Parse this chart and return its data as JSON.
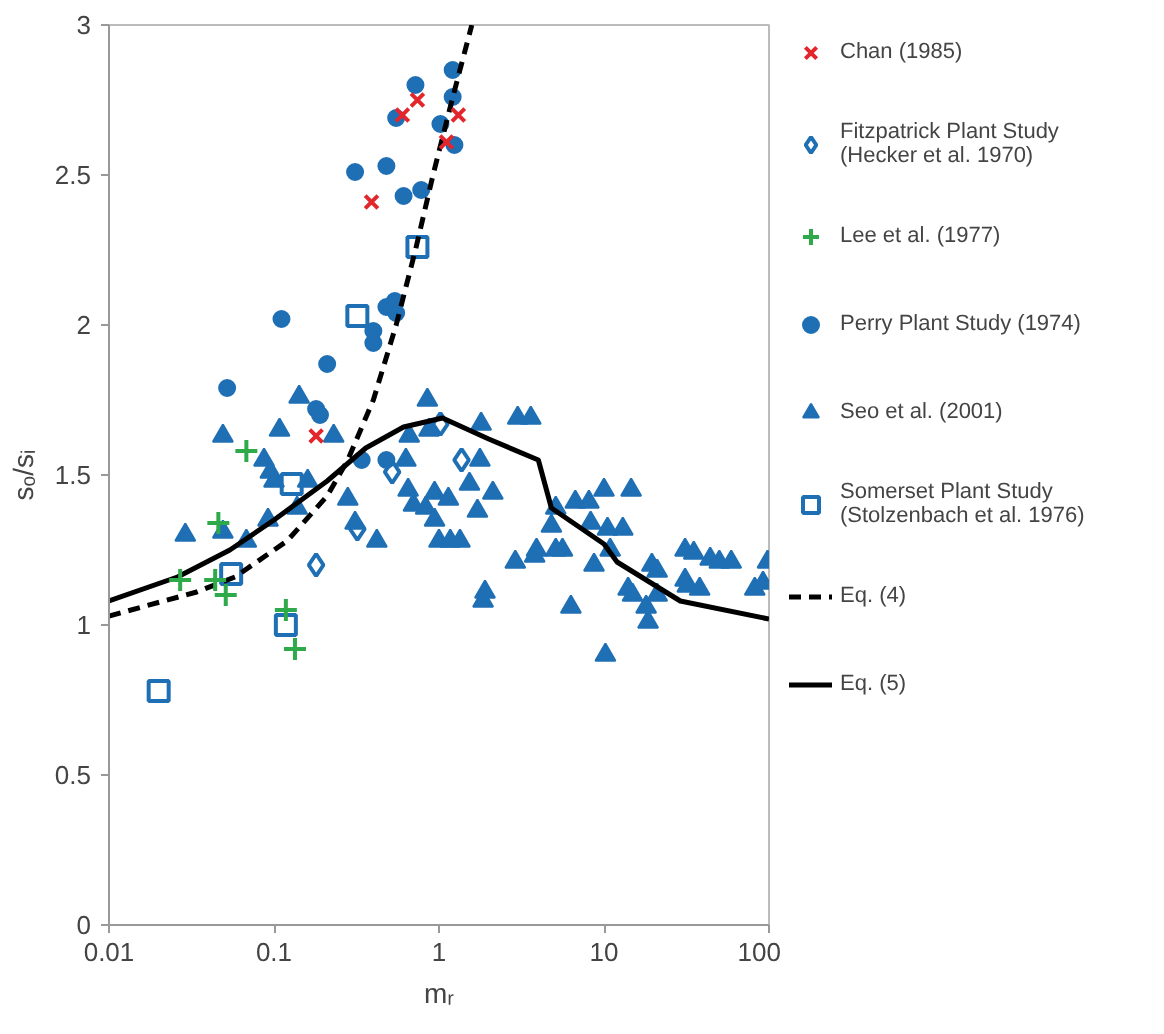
{
  "chart_data": {
    "type": "scatter",
    "xlabel": "mᵣ",
    "ylabel": "sₒ/sᵢ",
    "log": "x",
    "grid": false,
    "legend": "right",
    "xlim": [
      0.01,
      100
    ],
    "xticks": [
      0.01,
      0.1,
      1,
      10,
      100
    ],
    "ylim": [
      0,
      3
    ],
    "yticks": [
      0,
      0.5,
      1,
      1.5,
      2,
      2.5,
      3
    ],
    "series": [
      {
        "name": "Chan (1985)",
        "color": "#e3262c",
        "marker": "x",
        "x": [
          0.39,
          0.74,
          0.6,
          1.31,
          1.11,
          0.18
        ],
        "values": [
          2.41,
          2.75,
          2.7,
          2.7,
          2.61,
          1.63
        ]
      },
      {
        "name": "Fitzpatrick Plant Study (Hecker et al. 1970)",
        "color": "#1f6fb5",
        "marker": "diamond",
        "x": [
          1.02,
          0.52,
          1.37,
          0.32,
          0.18
        ],
        "values": [
          1.67,
          1.51,
          1.55,
          1.32,
          1.2
        ]
      },
      {
        "name": "Lee et al. (1977)",
        "color": "#2eaa4a",
        "marker": "cross",
        "x": [
          0.027,
          0.046,
          0.044,
          0.051,
          0.118,
          0.134,
          0.068
        ],
        "values": [
          1.15,
          1.34,
          1.15,
          1.1,
          1.05,
          0.92,
          1.58
        ]
      },
      {
        "name": "Perry Plant Study (1974)",
        "color": "#1f6fb5",
        "marker": "circle",
        "x": [
          0.052,
          0.111,
          0.21,
          0.31,
          0.48,
          0.61,
          0.78,
          0.55,
          0.72,
          1.02,
          1.21,
          1.21,
          1.24,
          0.4,
          0.4,
          0.48,
          0.54,
          0.55,
          0.18,
          0.19,
          0.34,
          0.48
        ],
        "values": [
          1.79,
          2.02,
          1.87,
          2.51,
          2.53,
          2.43,
          2.45,
          2.69,
          2.8,
          2.67,
          2.85,
          2.76,
          2.6,
          1.98,
          1.94,
          2.06,
          2.08,
          2.04,
          1.72,
          1.7,
          1.55,
          1.55
        ]
      },
      {
        "name": "Seo et al. (2001)",
        "color": "#1f6fb5",
        "marker": "triangle",
        "x": [
          0.029,
          0.049,
          0.108,
          0.142,
          0.23,
          0.087,
          0.095,
          0.1,
          0.092,
          0.068,
          0.049,
          0.138,
          0.16,
          0.28,
          0.42,
          0.31,
          0.63,
          0.65,
          0.7,
          0.83,
          0.94,
          1.14,
          0.94,
          1.0,
          1.17,
          1.34,
          1.53,
          1.71,
          2.12,
          1.85,
          1.9,
          0.85,
          0.66,
          0.87,
          1.8,
          3.0,
          3.6,
          1.77,
          2.9,
          3.9,
          3.8,
          5.1,
          6.3,
          5.1,
          6.7,
          4.8,
          5.6,
          8.1,
          8.3,
          8.7,
          10,
          10.5,
          10.2,
          10.9,
          13,
          14.6,
          14,
          14.9,
          18,
          18.5,
          19.5,
          21,
          21,
          31,
          35,
          31,
          32,
          38,
          44,
          50,
          59,
          82,
          92,
          98
        ],
        "values": [
          1.3,
          1.63,
          1.65,
          1.76,
          1.63,
          1.55,
          1.51,
          1.48,
          1.35,
          1.28,
          1.31,
          1.39,
          1.48,
          1.42,
          1.28,
          1.34,
          1.55,
          1.45,
          1.4,
          1.39,
          1.44,
          1.42,
          1.35,
          1.28,
          1.28,
          1.28,
          1.47,
          1.38,
          1.44,
          1.08,
          1.11,
          1.75,
          1.63,
          1.65,
          1.67,
          1.69,
          1.69,
          1.55,
          1.21,
          1.25,
          1.23,
          1.25,
          1.06,
          1.39,
          1.41,
          1.33,
          1.25,
          1.41,
          1.34,
          1.2,
          1.45,
          1.32,
          0.9,
          1.25,
          1.32,
          1.45,
          1.12,
          1.1,
          1.06,
          1.01,
          1.2,
          1.18,
          1.1,
          1.25,
          1.24,
          1.15,
          1.13,
          1.12,
          1.22,
          1.21,
          1.21,
          1.12,
          1.14,
          1.21
        ]
      },
      {
        "name": "Somerset Plant Study (Stolzenbach et al. 1976)",
        "color": "#1f6fb5",
        "marker": "square",
        "x": [
          0.74,
          0.32,
          0.02,
          0.055,
          0.118,
          0.128
        ],
        "values": [
          2.26,
          2.03,
          0.78,
          1.17,
          1.0,
          1.47
        ]
      },
      {
        "name": "Eq. (4)",
        "type": "line",
        "color": "#000000",
        "line_style": "dashed",
        "marker": "none",
        "x": [
          0.01,
          0.034,
          0.058,
          0.12,
          0.21,
          0.28,
          0.4,
          0.55,
          0.72,
          0.92,
          1.2,
          1.58
        ],
        "values": [
          1.03,
          1.11,
          1.16,
          1.28,
          1.43,
          1.55,
          1.75,
          2.0,
          2.25,
          2.5,
          2.75,
          3.0
        ]
      },
      {
        "name": "Eq. (5)",
        "type": "line",
        "color": "#000000",
        "line_style": "solid",
        "marker": "none",
        "x": [
          0.01,
          0.026,
          0.054,
          0.1,
          0.21,
          0.36,
          0.61,
          1.05,
          2.0,
          4.0,
          4.8,
          10,
          12,
          29,
          100
        ],
        "values": [
          1.08,
          1.16,
          1.25,
          1.35,
          1.48,
          1.59,
          1.66,
          1.69,
          1.62,
          1.55,
          1.39,
          1.27,
          1.21,
          1.08,
          1.02
        ]
      }
    ]
  }
}
